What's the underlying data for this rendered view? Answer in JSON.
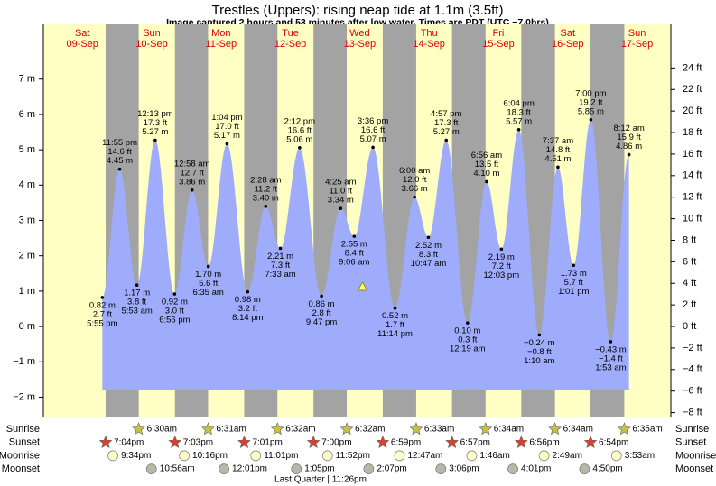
{
  "chart_data": {
    "type": "tide",
    "title": "Trestles (Uppers): rising  neap tide at 1.1m (3.5ft)",
    "subtitle": "Image captured 2 hours and 53 minutes after low water. Times are PDT (UTC −7.0hrs)",
    "days": [
      {
        "name": "Sat",
        "date": "09-Sep"
      },
      {
        "name": "Sun",
        "date": "10-Sep"
      },
      {
        "name": "Mon",
        "date": "11-Sep"
      },
      {
        "name": "Tue",
        "date": "12-Sep"
      },
      {
        "name": "Wed",
        "date": "13-Sep"
      },
      {
        "name": "Thu",
        "date": "14-Sep"
      },
      {
        "name": "Fri",
        "date": "15-Sep"
      },
      {
        "name": "Sat",
        "date": "16-Sep"
      },
      {
        "name": "Sun",
        "date": "17-Sep"
      }
    ],
    "xlim": [
      -2.5,
      214.7
    ],
    "ylim": [
      -2.55,
      8.55
    ],
    "yticks": [
      {
        "value": -2,
        "label": "−2 m"
      },
      {
        "value": -1,
        "label": "−1 m"
      },
      {
        "value": 0,
        "label": "0 m"
      },
      {
        "value": 1,
        "label": "1 m"
      },
      {
        "value": 2,
        "label": "2 m"
      },
      {
        "value": 3,
        "label": "3 m"
      },
      {
        "value": 4,
        "label": "4 m"
      },
      {
        "value": 5,
        "label": "5 m"
      },
      {
        "value": 6,
        "label": "6 m"
      },
      {
        "value": 7,
        "label": "7 m"
      }
    ],
    "y2lim": [
      -8.37,
      28.05
    ],
    "y2ticks": [
      {
        "value": -8,
        "label": "−8 ft"
      },
      {
        "value": -6,
        "label": "−6 ft"
      },
      {
        "value": -4,
        "label": "−4 ft"
      },
      {
        "value": -2,
        "label": "−2 ft"
      },
      {
        "value": 0,
        "label": "0 ft"
      },
      {
        "value": 2,
        "label": "2 ft"
      },
      {
        "value": 4,
        "label": "4 ft"
      },
      {
        "value": 6,
        "label": "6 ft"
      },
      {
        "value": 8,
        "label": "8 ft"
      },
      {
        "value": 10,
        "label": "10 ft"
      },
      {
        "value": 12,
        "label": "12 ft"
      },
      {
        "value": 14,
        "label": "14 ft"
      },
      {
        "value": 16,
        "label": "16 ft"
      },
      {
        "value": 18,
        "label": "18 ft"
      },
      {
        "value": 20,
        "label": "20 ft"
      },
      {
        "value": 22,
        "label": "22 ft"
      },
      {
        "value": 24,
        "label": "24 ft"
      }
    ],
    "colors": {
      "day": "#ffffc4",
      "night": "#a3a3a3",
      "water": "#9eacfb"
    },
    "tides": [
      {
        "time": "5:55 pm",
        "x": 17.92,
        "m": 0.82,
        "m_label": "0.82 m",
        "ft": 2.7,
        "ft_label": "2.7 ft"
      },
      {
        "time": "11:55 pm",
        "x": 23.92,
        "m": 4.45,
        "m_label": "4.45 m",
        "ft": 14.6,
        "ft_label": "14.6 ft"
      },
      {
        "time": "5:53 am",
        "x": 29.88,
        "m": 1.17,
        "m_label": "1.17 m",
        "ft": 3.8,
        "ft_label": "3.8 ft"
      },
      {
        "time": "12:13 pm",
        "x": 36.22,
        "m": 5.27,
        "m_label": "5.27 m",
        "ft": 17.3,
        "ft_label": "17.3 ft"
      },
      {
        "time": "6:56 pm",
        "x": 42.93,
        "m": 0.92,
        "m_label": "0.92 m",
        "ft": 3.0,
        "ft_label": "3.0 ft"
      },
      {
        "time": "12:58 am",
        "x": 48.97,
        "m": 3.86,
        "m_label": "3.86 m",
        "ft": 12.7,
        "ft_label": "12.7 ft"
      },
      {
        "time": "6:35 am",
        "x": 54.58,
        "m": 1.7,
        "m_label": "1.70 m",
        "ft": 5.6,
        "ft_label": "5.6 ft"
      },
      {
        "time": "1:04 pm",
        "x": 61.07,
        "m": 5.17,
        "m_label": "5.17 m",
        "ft": 17.0,
        "ft_label": "17.0 ft"
      },
      {
        "time": "8:14 pm",
        "x": 68.23,
        "m": 0.98,
        "m_label": "0.98 m",
        "ft": 3.2,
        "ft_label": "3.2 ft"
      },
      {
        "time": "2:28 am",
        "x": 74.47,
        "m": 3.4,
        "m_label": "3.40 m",
        "ft": 11.2,
        "ft_label": "11.2 ft"
      },
      {
        "time": "7:33 am",
        "x": 79.55,
        "m": 2.21,
        "m_label": "2.21 m",
        "ft": 7.3,
        "ft_label": "7.3 ft"
      },
      {
        "time": "2:12 pm",
        "x": 86.2,
        "m": 5.06,
        "m_label": "5.06 m",
        "ft": 16.6,
        "ft_label": "16.6 ft"
      },
      {
        "time": "9:47 pm",
        "x": 93.78,
        "m": 0.86,
        "m_label": "0.86 m",
        "ft": 2.8,
        "ft_label": "2.8 ft"
      },
      {
        "time": "4:25 am",
        "x": 100.42,
        "m": 3.34,
        "m_label": "3.34 m",
        "ft": 11.0,
        "ft_label": "11.0 ft"
      },
      {
        "time": "9:06 am",
        "x": 105.1,
        "m": 2.55,
        "m_label": "2.55 m",
        "ft": 8.4,
        "ft_label": "8.4 ft"
      },
      {
        "time": "3:36 pm",
        "x": 111.6,
        "m": 5.07,
        "m_label": "5.07 m",
        "ft": 16.6,
        "ft_label": "16.6 ft"
      },
      {
        "time": "11:14 pm",
        "x": 119.23,
        "m": 0.52,
        "m_label": "0.52 m",
        "ft": 1.7,
        "ft_label": "1.7 ft"
      },
      {
        "time": "6:00 am",
        "x": 126.0,
        "m": 3.66,
        "m_label": "3.66 m",
        "ft": 12.0,
        "ft_label": "12.0 ft"
      },
      {
        "time": "10:47 am",
        "x": 130.78,
        "m": 2.52,
        "m_label": "2.52 m",
        "ft": 8.3,
        "ft_label": "8.3 ft"
      },
      {
        "time": "4:57 pm",
        "x": 136.95,
        "m": 5.27,
        "m_label": "5.27 m",
        "ft": 17.3,
        "ft_label": "17.3 ft"
      },
      {
        "time": "12:19 am",
        "x": 144.32,
        "m": 0.1,
        "m_label": "0.10 m",
        "ft": 0.3,
        "ft_label": "0.3 ft"
      },
      {
        "time": "6:56 am",
        "x": 150.93,
        "m": 4.1,
        "m_label": "4.10 m",
        "ft": 13.5,
        "ft_label": "13.5 ft"
      },
      {
        "time": "12:03 pm",
        "x": 156.05,
        "m": 2.19,
        "m_label": "2.19 m",
        "ft": 7.2,
        "ft_label": "7.2 ft"
      },
      {
        "time": "6:04 pm",
        "x": 162.07,
        "m": 5.57,
        "m_label": "5.57 m",
        "ft": 18.3,
        "ft_label": "18.3 ft"
      },
      {
        "time": "1:10 am",
        "x": 169.17,
        "m": -0.24,
        "m_label": "−0.24 m",
        "ft": -0.8,
        "ft_label": "−0.8 ft"
      },
      {
        "time": "7:37 am",
        "x": 175.62,
        "m": 4.51,
        "m_label": "4.51 m",
        "ft": 14.8,
        "ft_label": "14.8 ft"
      },
      {
        "time": "1:01 pm",
        "x": 181.02,
        "m": 1.73,
        "m_label": "1.73 m",
        "ft": 5.7,
        "ft_label": "5.7 ft"
      },
      {
        "time": "7:00 pm",
        "x": 187.0,
        "m": 5.85,
        "m_label": "5.85 m",
        "ft": 19.2,
        "ft_label": "19.2 ft"
      },
      {
        "time": "1:53 am",
        "x": 193.88,
        "m": -0.43,
        "m_label": "−0.43 m",
        "ft": -1.4,
        "ft_label": "−1.4 ft"
      },
      {
        "time": "8:12 am",
        "x": 200.2,
        "m": 4.86,
        "m_label": "4.86 m",
        "ft": 15.9,
        "ft_label": "15.9 ft"
      }
    ],
    "current": {
      "x": 107.98,
      "m": 1.1
    },
    "rows": [
      {
        "name": "Sunrise",
        "icon": "star",
        "color": "#c8c040",
        "events": [
          {
            "x": 30.5,
            "label": "6:30am"
          },
          {
            "x": 54.52,
            "label": "6:31am"
          },
          {
            "x": 78.53,
            "label": "6:32am"
          },
          {
            "x": 102.53,
            "label": "6:32am"
          },
          {
            "x": 126.55,
            "label": "6:33am"
          },
          {
            "x": 150.57,
            "label": "6:34am"
          },
          {
            "x": 174.57,
            "label": "6:34am"
          },
          {
            "x": 198.58,
            "label": "6:35am"
          }
        ]
      },
      {
        "name": "Sunset",
        "icon": "star",
        "color": "#d84030",
        "events": [
          {
            "x": 19.07,
            "label": "7:04pm"
          },
          {
            "x": 43.05,
            "label": "7:03pm"
          },
          {
            "x": 67.02,
            "label": "7:01pm"
          },
          {
            "x": 91.0,
            "label": "7:00pm"
          },
          {
            "x": 114.98,
            "label": "6:59pm"
          },
          {
            "x": 138.95,
            "label": "6:57pm"
          },
          {
            "x": 162.93,
            "label": "6:56pm"
          },
          {
            "x": 186.9,
            "label": "6:54pm"
          }
        ]
      },
      {
        "name": "Moonrise",
        "icon": "circle",
        "color": "#ffffc8",
        "events": [
          {
            "x": 21.57,
            "label": "9:34pm"
          },
          {
            "x": 46.27,
            "label": "10:16pm"
          },
          {
            "x": 71.02,
            "label": "11:01pm"
          },
          {
            "x": 95.87,
            "label": "11:52pm"
          },
          {
            "x": 120.78,
            "label": "12:47am"
          },
          {
            "x": 145.77,
            "label": "1:46am"
          },
          {
            "x": 170.82,
            "label": "2:49am"
          },
          {
            "x": 195.88,
            "label": "3:53am"
          }
        ]
      },
      {
        "name": "Moonset",
        "icon": "circle",
        "color": "#b8b8a8",
        "events": [
          {
            "x": 34.93,
            "label": "10:56am"
          },
          {
            "x": 60.02,
            "label": "12:01pm"
          },
          {
            "x": 85.08,
            "label": "1:05pm"
          },
          {
            "x": 110.12,
            "label": "2:07pm"
          },
          {
            "x": 135.1,
            "label": "3:06pm"
          },
          {
            "x": 160.02,
            "label": "4:01pm"
          },
          {
            "x": 184.83,
            "label": "4:50pm"
          }
        ]
      }
    ],
    "moon_phase": "Last Quarter | 11:26pm"
  }
}
